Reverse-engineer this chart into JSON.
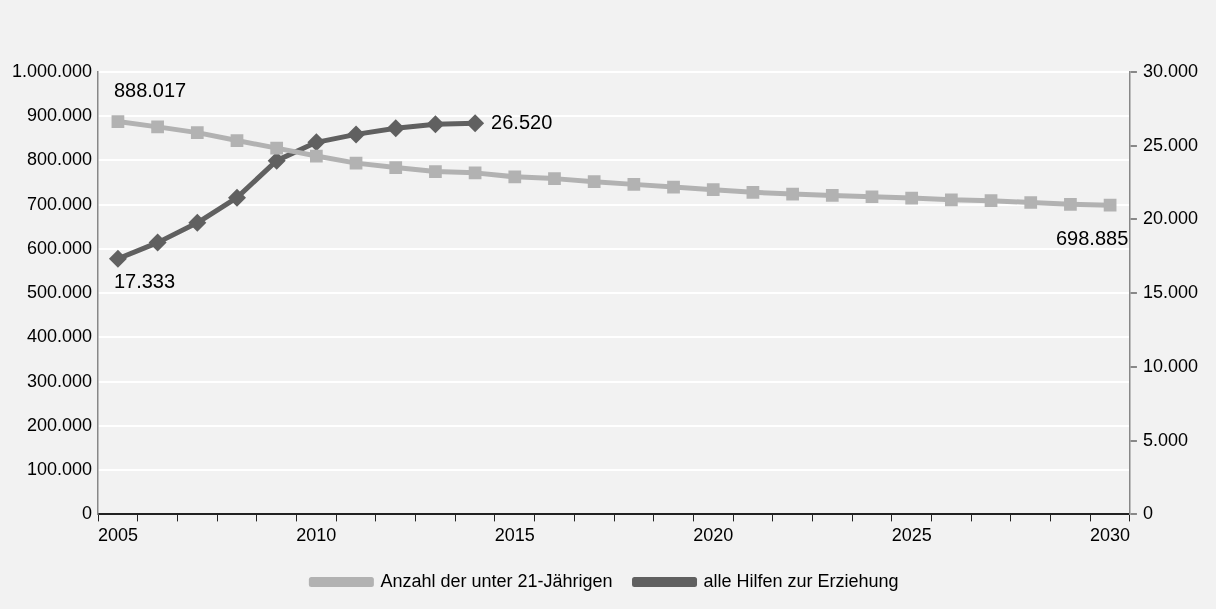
{
  "chart_data": {
    "type": "line",
    "categories": [
      "2005",
      null,
      null,
      null,
      null,
      "2010",
      null,
      null,
      null,
      null,
      "2015",
      null,
      null,
      null,
      null,
      "2020",
      null,
      null,
      null,
      null,
      "2025",
      null,
      null,
      null,
      null,
      "2030"
    ],
    "series": [
      {
        "name": "Anzahl der unter 21-Jährigen",
        "color": "#b2b2b2",
        "marker": "square",
        "values": [
          888017,
          876000,
          863000,
          845000,
          828000,
          810000,
          794000,
          784000,
          775000,
          772000,
          763000,
          759000,
          752000,
          746000,
          740000,
          734000,
          728000,
          724000,
          721000,
          718000,
          715000,
          711000,
          709000,
          705000,
          701000,
          698885
        ],
        "value_labels": [
          "888.017",
          null,
          null,
          null,
          null,
          null,
          null,
          null,
          null,
          null,
          null,
          null,
          null,
          null,
          null,
          null,
          null,
          null,
          null,
          null,
          null,
          null,
          null,
          null,
          null,
          "698.885"
        ]
      },
      {
        "name": "alle Hilfen zur Erziehung",
        "color": "#606060",
        "marker": "diamond",
        "axis": "y2",
        "values": [
          17333,
          18430,
          19770,
          21480,
          23990,
          25230,
          25770,
          26180,
          26460,
          26520,
          null,
          null,
          null,
          null,
          null,
          null,
          null,
          null,
          null,
          null,
          null,
          null,
          null,
          null,
          null,
          null
        ],
        "value_labels": [
          "17.333",
          null,
          null,
          null,
          null,
          null,
          null,
          null,
          null,
          "26.520",
          null,
          null,
          null,
          null,
          null,
          null,
          null,
          null,
          null,
          null,
          null,
          null,
          null,
          null,
          null,
          null
        ]
      }
    ],
    "ylim": [
      0,
      1000000
    ],
    "yticks": [
      0,
      {
        "value": 100000,
        "label": "100.000"
      },
      {
        "value": 200000,
        "label": "200.000"
      },
      {
        "value": 300000,
        "label": "300.000"
      },
      {
        "value": 400000,
        "label": "400.000"
      },
      {
        "value": 500000,
        "label": "500.000"
      },
      {
        "value": 600000,
        "label": "600.000"
      },
      {
        "value": 700000,
        "label": "700.000"
      },
      {
        "value": 800000,
        "label": "800.000"
      },
      {
        "value": 900000,
        "label": "900.000"
      },
      {
        "value": 1000000,
        "label": "1.000.000"
      }
    ],
    "y2lim": [
      0,
      30000
    ],
    "y2ticks": [
      0,
      {
        "value": 5000,
        "label": "5.000"
      },
      {
        "value": 10000,
        "label": "10.000"
      },
      {
        "value": 15000,
        "label": "15.000"
      },
      {
        "value": 20000,
        "label": "20.000"
      },
      {
        "value": 25000,
        "label": "25.000"
      },
      {
        "value": 30000,
        "label": "30.000"
      }
    ],
    "grid": "y",
    "legend": "bottom",
    "line_style": "solid"
  }
}
